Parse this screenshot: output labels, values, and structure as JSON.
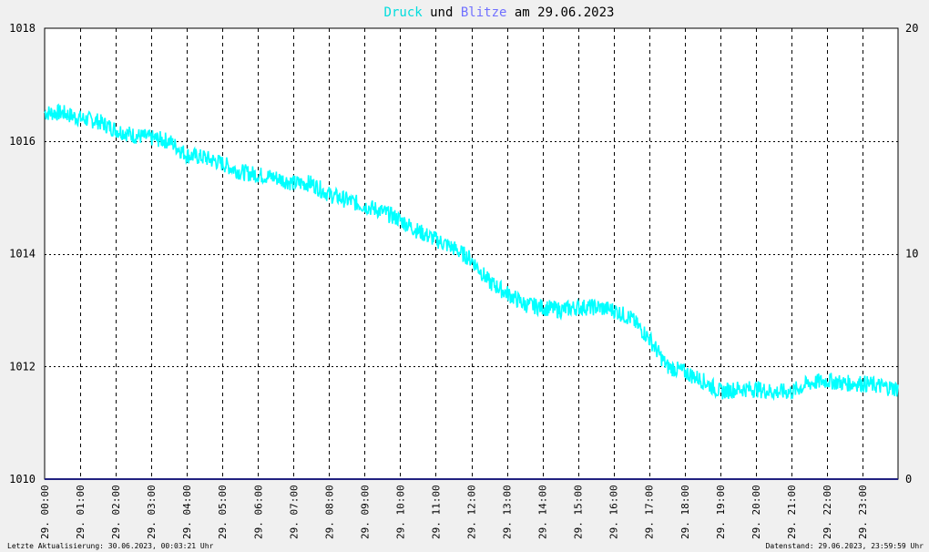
{
  "title": {
    "part1": "Druck",
    "part2": " und ",
    "part3": "Blitze",
    "part4": " am 29.06.2023"
  },
  "colors": {
    "background": "#f0f0f0",
    "plot_area": "#ffffff",
    "pressure": "#00ffff",
    "lightning": "#202080",
    "druck_title": "#00dddd",
    "blitze_title": "#7070ff"
  },
  "footer": {
    "left": "Letzte Aktualisierung: 30.06.2023, 00:03:21 Uhr",
    "right": "Datenstand: 29.06.2023, 23:59:59 Uhr"
  },
  "chart_data": {
    "type": "line",
    "title": "Druck und Blitze am 29.06.2023",
    "x_tick_labels": [
      "29. 00:00",
      "29. 01:00",
      "29. 02:00",
      "29. 03:00",
      "29. 04:00",
      "29. 05:00",
      "29. 06:00",
      "29. 07:00",
      "29. 08:00",
      "29. 09:00",
      "29. 10:00",
      "29. 11:00",
      "29. 12:00",
      "29. 13:00",
      "29. 14:00",
      "29. 15:00",
      "29. 16:00",
      "29. 17:00",
      "29. 18:00",
      "29. 19:00",
      "29. 20:00",
      "29. 21:00",
      "29. 22:00",
      "29. 23:00"
    ],
    "xlim_hours": [
      0,
      24
    ],
    "y_left": {
      "label": "",
      "ylim": [
        1010,
        1018
      ],
      "ticks": [
        1010,
        1012,
        1014,
        1016,
        1018
      ]
    },
    "y_right": {
      "label": "",
      "ylim": [
        0,
        20
      ],
      "ticks": [
        0,
        10,
        20
      ]
    },
    "grid": true,
    "series": [
      {
        "name": "Druck",
        "axis": "left",
        "color": "#00ffff",
        "x_hours": [
          0,
          0.5,
          1,
          1.5,
          2,
          2.5,
          3,
          3.5,
          4,
          4.5,
          5,
          5.5,
          6,
          6.5,
          7,
          7.5,
          8,
          8.5,
          9,
          9.5,
          10,
          10.5,
          11,
          11.5,
          12,
          12.5,
          13,
          13.5,
          14,
          14.5,
          15,
          15.5,
          16,
          16.5,
          17,
          17.5,
          18,
          18.5,
          19,
          19.5,
          20,
          20.5,
          21,
          21.5,
          22,
          22.5,
          23,
          23.5,
          24
        ],
        "values": [
          1016.5,
          1016.5,
          1016.4,
          1016.35,
          1016.2,
          1016.1,
          1016.05,
          1016.0,
          1015.75,
          1015.7,
          1015.6,
          1015.45,
          1015.4,
          1015.35,
          1015.25,
          1015.25,
          1015.05,
          1014.95,
          1014.85,
          1014.75,
          1014.6,
          1014.4,
          1014.25,
          1014.1,
          1013.9,
          1013.5,
          1013.3,
          1013.1,
          1013.05,
          1013.0,
          1013.05,
          1013.05,
          1013.0,
          1012.85,
          1012.5,
          1012.0,
          1011.9,
          1011.75,
          1011.55,
          1011.6,
          1011.6,
          1011.55,
          1011.55,
          1011.7,
          1011.75,
          1011.7,
          1011.7,
          1011.65,
          1011.6
        ]
      },
      {
        "name": "Blitze",
        "axis": "right",
        "color": "#202080",
        "x_hours": [
          0,
          24
        ],
        "values": [
          0,
          0
        ]
      }
    ]
  }
}
